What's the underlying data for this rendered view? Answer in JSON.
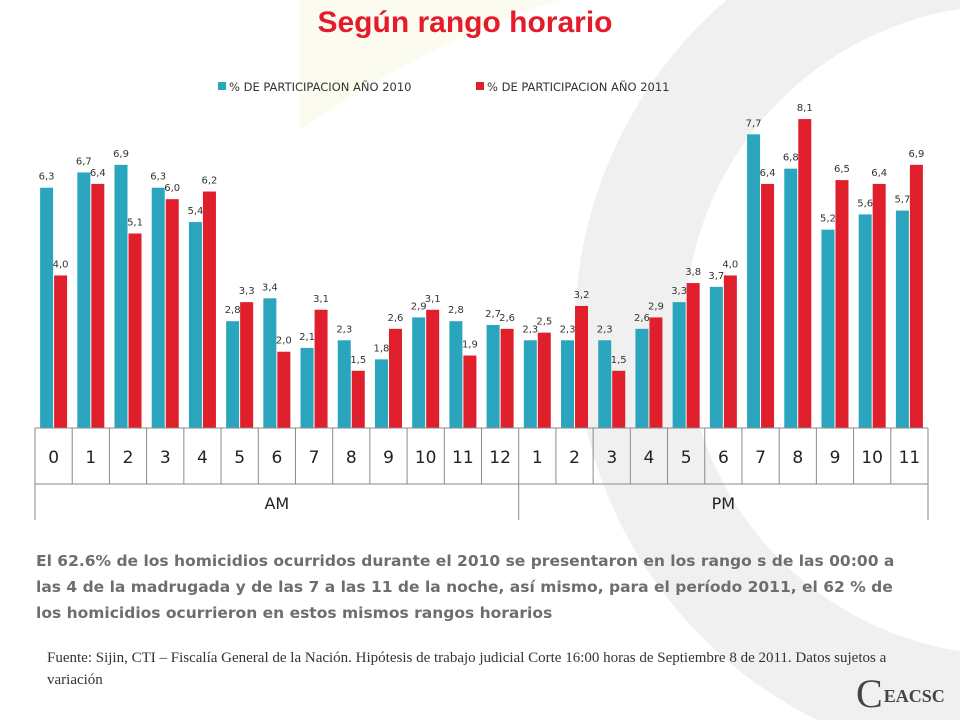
{
  "slide": {
    "title": "Según rango horario",
    "caption": "El 62.6% de los homicidios ocurridos durante el 2010 se presentaron en los rango s de las 00:00 a las 4 de la madrugada y de las 7 a las 11 de la noche, así mismo, para el período 2011, el 62 % de los homicidios ocurrieron en estos mismos rangos horarios",
    "source": "Fuente: Sijin, CTI – Fiscalía General de la Nación. Hipótesis de trabajo judicial Corte 16:00 horas de Septiembre 8 de 2011. Datos sujetos a variación",
    "logo_text": "EACSC"
  },
  "chart_data": {
    "type": "bar",
    "title": "",
    "categories": [
      "0",
      "1",
      "2",
      "3",
      "4",
      "5",
      "6",
      "7",
      "8",
      "9",
      "10",
      "11",
      "12",
      "1",
      "2",
      "3",
      "4",
      "5",
      "6",
      "7",
      "8",
      "9",
      "10",
      "11"
    ],
    "groups": [
      {
        "label": "AM",
        "count": 13
      },
      {
        "label": "PM",
        "count": 11
      }
    ],
    "series": [
      {
        "name": "% DE PARTICIPACION AÑO 2010",
        "color": "#2aa5bd",
        "values": [
          6.3,
          6.7,
          6.9,
          6.3,
          5.4,
          2.8,
          3.4,
          2.1,
          2.3,
          1.8,
          2.9,
          2.8,
          2.7,
          2.3,
          2.3,
          2.3,
          2.6,
          3.3,
          3.7,
          7.7,
          6.8,
          5.2,
          5.6,
          5.7
        ],
        "labels": [
          "6,3",
          "6,7",
          "6,9",
          "6,3",
          "5,4",
          "2,8",
          "3,4",
          "2,1",
          "2,3",
          "1,8",
          "2,9",
          "2,8",
          "2,7",
          "2,3",
          "2,3",
          "2,3",
          "2,6",
          "3,3",
          "3,7",
          "7,7",
          "6,8",
          "5,2",
          "5,6",
          "5,7"
        ]
      },
      {
        "name": "% DE PARTICIPACION AÑO 2011",
        "color": "#e01f2d",
        "values": [
          4.0,
          6.4,
          5.1,
          6.0,
          6.2,
          3.3,
          2.0,
          3.1,
          1.5,
          2.6,
          3.1,
          1.9,
          2.6,
          2.5,
          3.2,
          1.5,
          2.9,
          3.8,
          4.0,
          6.4,
          8.1,
          6.5,
          6.4,
          6.9
        ],
        "labels": [
          "4,0",
          "6,4",
          "5,1",
          "6,0",
          "6,2",
          "3,3",
          "2,0",
          "3,1",
          "1,5",
          "2,6",
          "3,1",
          "1,9",
          "2,6",
          "2,5",
          "3,2",
          "1,5",
          "2,9",
          "3,8",
          "4,0",
          "6,4",
          "8,1",
          "6,5",
          "6,4",
          "6,9"
        ]
      }
    ],
    "ylim": [
      0,
      8.6
    ],
    "grid": false,
    "legend": "top"
  }
}
